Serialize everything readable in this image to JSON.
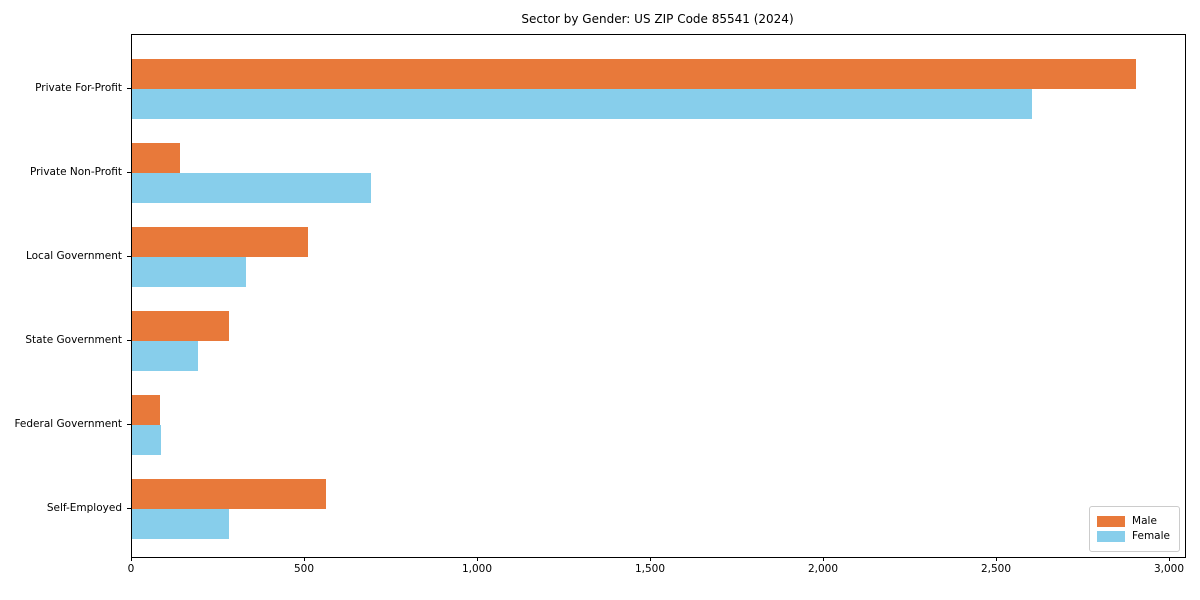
{
  "title": "Sector by Gender: US ZIP Code 85541 (2024)",
  "colors": {
    "male": "#e8793a",
    "female": "#87ceeb",
    "axis": "#000000",
    "legend_border": "#cccccc",
    "background": "#ffffff"
  },
  "legend": {
    "position": "lower right",
    "items": [
      {
        "label": "Male",
        "color": "#e8793a"
      },
      {
        "label": "Female",
        "color": "#87ceeb"
      }
    ]
  },
  "chart_data": {
    "type": "bar",
    "orientation": "horizontal",
    "title": "Sector by Gender: US ZIP Code 85541 (2024)",
    "categories": [
      "Private For-Profit",
      "Private Non-Profit",
      "Local Government",
      "State Government",
      "Federal Government",
      "Self-Employed"
    ],
    "series": [
      {
        "name": "Male",
        "color": "#e8793a",
        "values": [
          2900,
          140,
          510,
          280,
          80,
          560
        ]
      },
      {
        "name": "Female",
        "color": "#87ceeb",
        "values": [
          2600,
          690,
          330,
          190,
          85,
          280
        ]
      }
    ],
    "xlabel": "",
    "ylabel": "",
    "xlim": [
      0,
      3043
    ],
    "xticks": [
      0,
      500,
      1000,
      1500,
      2000,
      2500,
      3000
    ],
    "xtick_labels": [
      "0",
      "500",
      "1,000",
      "1,500",
      "2,000",
      "2,500",
      "3,000"
    ],
    "grid": false,
    "legend_position": "lower right"
  }
}
